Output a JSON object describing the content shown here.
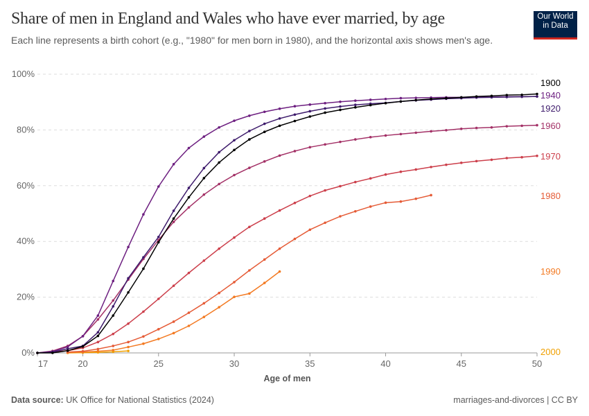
{
  "header": {
    "title": "Share of men in England and Wales who have ever married, by age",
    "subtitle": "Each line represents a birth cohort (e.g., \"1980\" for men born in 1980), and the horizontal axis shows men's age.",
    "logo": [
      "Our World",
      "in Data"
    ]
  },
  "footer": {
    "source_label": "Data source:",
    "source": "UK Office for National Statistics (2024)",
    "right": "marriages-and-divorces | CC BY"
  },
  "chart_data": {
    "type": "line",
    "title": "Share of men in England and Wales who have ever married, by age",
    "xlabel": "Age of men",
    "ylabel": "",
    "xlim": [
      17,
      50
    ],
    "ylim": [
      0,
      100
    ],
    "x_ticks": [
      "17",
      "20",
      "25",
      "30",
      "35",
      "40",
      "45",
      "50"
    ],
    "y_ticks": [
      "0%",
      "20%",
      "40%",
      "60%",
      "80%",
      "100%"
    ],
    "grid": "horizontal dashed",
    "legend": "line-end labels right",
    "series": [
      {
        "name": "1900",
        "color": "#000000",
        "start_age": 17,
        "values": [
          0,
          0,
          0.8,
          2.3,
          6.1,
          13.4,
          21.7,
          30.2,
          39.7,
          48.2,
          55.8,
          62.7,
          68.3,
          72.8,
          76.6,
          79.3,
          81.5,
          83.2,
          84.8,
          86.2,
          87.2,
          88.1,
          88.9,
          89.6,
          90.2,
          90.7,
          91.1,
          91.4,
          91.7,
          92.0,
          92.2,
          92.5,
          92.6,
          92.9
        ]
      },
      {
        "name": "1920",
        "color": "#3d1a6b",
        "start_age": 17,
        "values": [
          0,
          0.3,
          1.5,
          2.5,
          7.4,
          16.7,
          26.8,
          34.3,
          41.6,
          51.0,
          59.2,
          66.3,
          72.0,
          76.3,
          79.6,
          82.2,
          84.1,
          85.5,
          86.7,
          87.7,
          88.4,
          89.0,
          89.4,
          89.7,
          90.2,
          90.6,
          90.9,
          91.2,
          91.4,
          91.6,
          91.7,
          91.8,
          91.9,
          92.0
        ]
      },
      {
        "name": "1940",
        "color": "#6d1f80",
        "start_age": 17,
        "values": [
          0,
          0.5,
          2.2,
          6.0,
          13.4,
          25.8,
          38.0,
          49.7,
          59.7,
          67.7,
          73.5,
          77.6,
          80.9,
          83.3,
          85.1,
          86.5,
          87.6,
          88.5,
          89.1,
          89.6,
          90.1,
          90.5,
          90.8,
          91.1,
          91.4,
          91.5,
          91.6,
          91.7,
          91.7,
          91.8,
          91.8,
          91.9,
          91.9,
          92.0
        ]
      },
      {
        "name": "1960",
        "color": "#a33066",
        "start_age": 17,
        "values": [
          0,
          0.7,
          2.5,
          6.0,
          12.0,
          18.8,
          26.3,
          33.7,
          40.5,
          47.0,
          52.2,
          56.8,
          60.6,
          63.8,
          66.4,
          68.7,
          70.8,
          72.4,
          73.8,
          74.8,
          75.7,
          76.6,
          77.4,
          78.0,
          78.5,
          79.0,
          79.5,
          79.9,
          80.4,
          80.7,
          80.9,
          81.3,
          81.5,
          81.7
        ]
      },
      {
        "name": "1970",
        "color": "#cc3f4b",
        "start_age": 17,
        "values": [
          0,
          0.3,
          0.8,
          1.8,
          3.9,
          6.8,
          10.5,
          14.8,
          19.4,
          24.1,
          28.7,
          33.1,
          37.4,
          41.4,
          45.2,
          48.2,
          51.1,
          53.8,
          56.3,
          58.3,
          59.8,
          61.3,
          62.6,
          64.0,
          65.0,
          65.8,
          66.7,
          67.5,
          68.2,
          68.8,
          69.3,
          69.9,
          70.2,
          70.7
        ]
      },
      {
        "name": "1980",
        "color": "#e55b36",
        "start_age": 19,
        "values": [
          0.3,
          0.6,
          1.4,
          2.5,
          3.9,
          5.9,
          8.5,
          11.2,
          14.4,
          17.8,
          21.5,
          25.4,
          29.6,
          33.5,
          37.4,
          40.9,
          44.2,
          46.7,
          49.0,
          50.8,
          52.5,
          53.9,
          54.3,
          55.3,
          56.6
        ]
      },
      {
        "name": "1990",
        "color": "#f37a22",
        "start_age": 19,
        "values": [
          0.1,
          0.3,
          0.6,
          1.0,
          2.1,
          3.3,
          5.0,
          7.1,
          9.7,
          12.9,
          16.4,
          20.1,
          21.3,
          25.1,
          29.2
        ]
      },
      {
        "name": "2000",
        "color": "#f0a000",
        "start_age": 19,
        "values": [
          0,
          0.1,
          0.2,
          0.4,
          0.7
        ]
      }
    ]
  }
}
